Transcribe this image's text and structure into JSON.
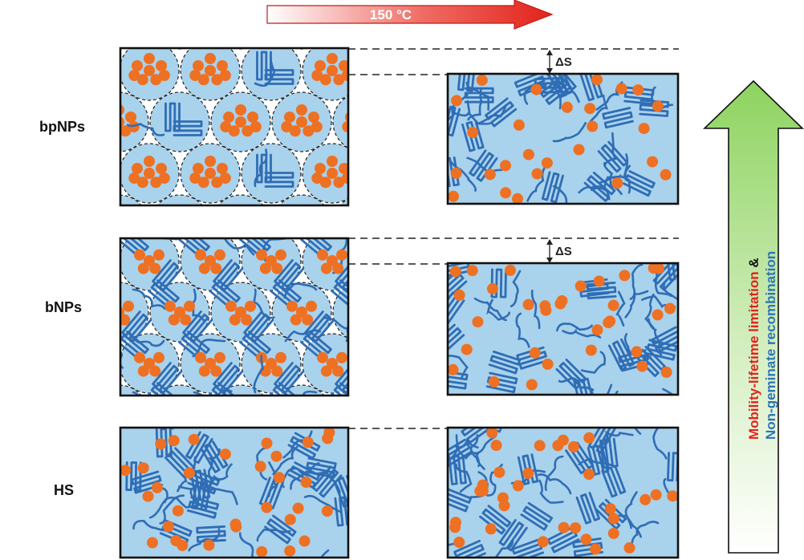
{
  "annotation": {
    "temperature": "150 °C",
    "delta_s": "ΔS"
  },
  "rows": [
    {
      "label": "bpNPs",
      "morphology": "packed nanoparticles with core-shell separation"
    },
    {
      "label": "bNPs",
      "morphology": "packed nanoparticles with blended interior"
    },
    {
      "label": "HS",
      "morphology": "homogeneous blend"
    }
  ],
  "side_arrow": {
    "line1_part1": "Mobility-lifetime limitation",
    "line1_part2": " &",
    "line2": "Non-geminate recombination"
  },
  "colors": {
    "matrix_fill": "#a9d2ec",
    "polymer_stroke": "#2f6db5",
    "fullerene": "#ee7023",
    "box_border": "#111111",
    "arrow_red": "#e2231a",
    "arrow_green_top": "#8dd35f",
    "text_red": "#e2231a",
    "text_blue": "#2e75b6"
  }
}
